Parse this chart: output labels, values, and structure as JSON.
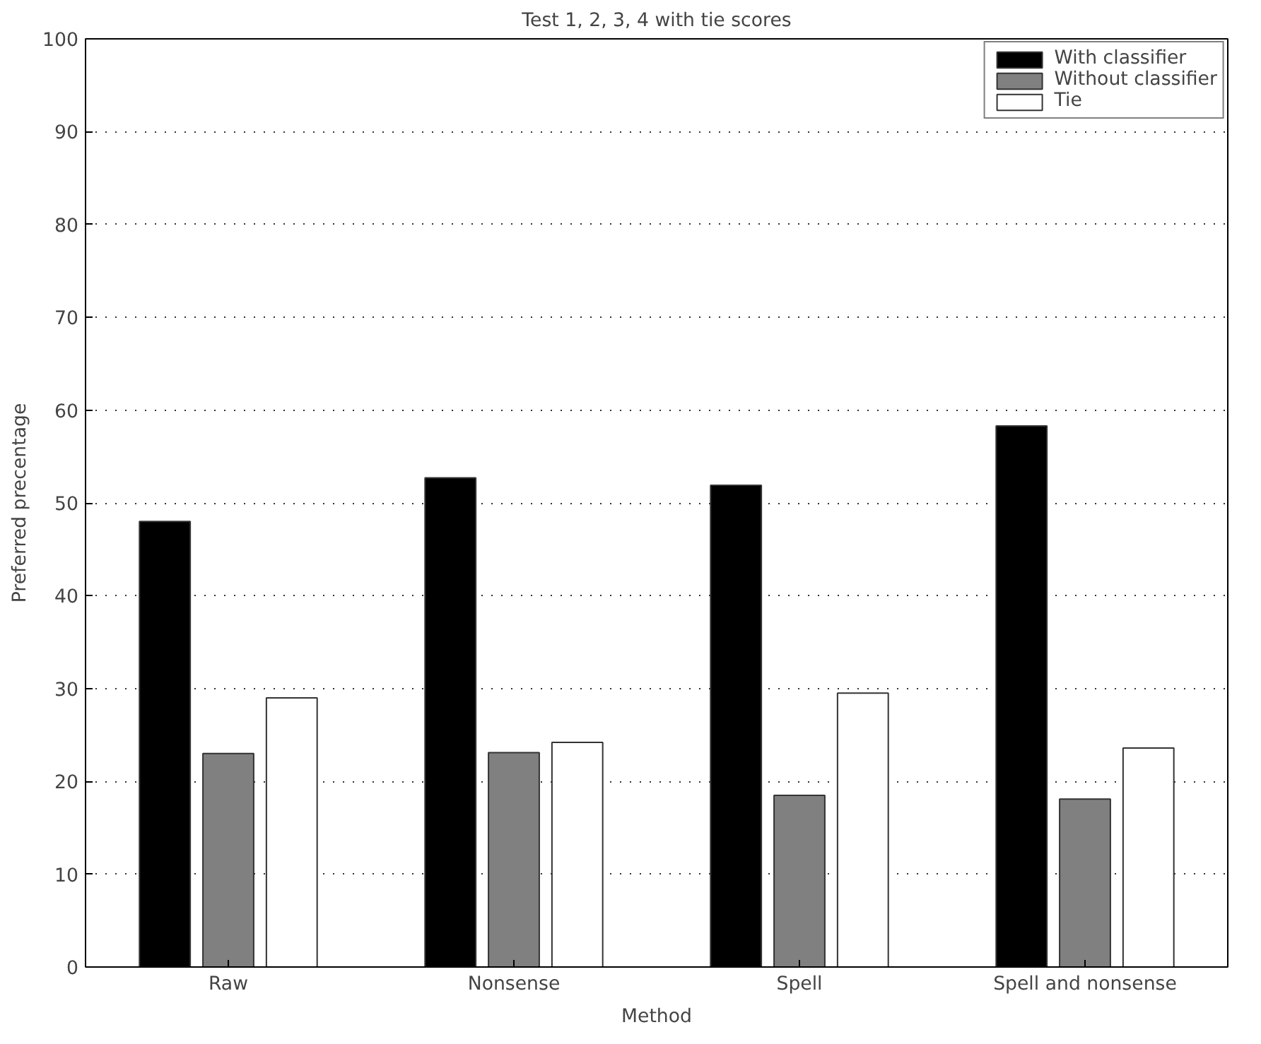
{
  "chart_data": {
    "type": "bar",
    "title": "Test 1, 2, 3, 4 with tie scores",
    "xlabel": "Method",
    "ylabel": "Preferred precentage",
    "categories": [
      "Raw",
      "Nonsense",
      "Spell",
      "Spell and nonsense"
    ],
    "series": [
      {
        "name": "With classifier",
        "color": "#000000",
        "values": [
          48.0,
          52.7,
          51.9,
          58.3
        ]
      },
      {
        "name": "Without classifier",
        "color": "#808080",
        "values": [
          23.0,
          23.1,
          18.5,
          18.1
        ]
      },
      {
        "name": "Tie",
        "color": "#ffffff",
        "values": [
          29.0,
          24.2,
          29.5,
          23.6
        ]
      }
    ],
    "ylim": [
      0,
      100
    ],
    "yticks": [
      0,
      10,
      20,
      30,
      40,
      50,
      60,
      70,
      80,
      90,
      100
    ],
    "grid": "y",
    "legend": "top right"
  }
}
